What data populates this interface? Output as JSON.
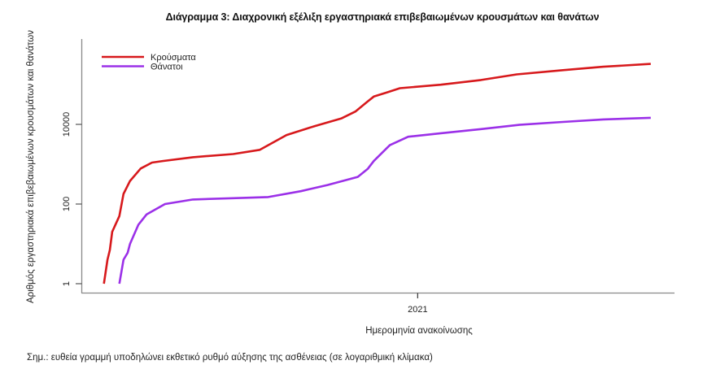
{
  "title": "Διάγραμμα 3: Διαχρονική εξέλιξη εργαστηριακά επιβεβαιωμένων κρουσμάτων και θανάτων",
  "note": "Σημ.: ευθεία γραμμή υποδηλώνει εκθετικό ρυθμό αύξησης της ασθένειας (σε λογαριθμική κλίμακα)",
  "colors": {
    "cases": "#d7191c",
    "deaths": "#9b30e8",
    "axis": "#888888"
  },
  "chart_data": {
    "type": "line",
    "title": "Διάγραμμα 3: Διαχρονική εξέλιξη εργαστηριακά επιβεβαιωμένων κρουσμάτων και θανάτων",
    "xlabel": "Ημερομηνία ανακοίνωσης",
    "ylabel": "Αριθμός εργαστηριακά επιβεβαιωμένων κρουσμάτων και θανάτων",
    "yscale": "log",
    "yticks": [
      1,
      100,
      10000
    ],
    "ytick_labels": [
      "1",
      "100",
      "10000"
    ],
    "xticks": [
      "2021"
    ],
    "grid": false,
    "legend_position": "top-left",
    "x_index_note": "x = horizontal position fraction (0 = left axis, 1 = right end of x-axis)",
    "series": [
      {
        "name": "Κρούσματα",
        "color": "#d7191c",
        "x": [
          0.038,
          0.044,
          0.048,
          0.052,
          0.064,
          0.071,
          0.082,
          0.1,
          0.119,
          0.137,
          0.188,
          0.256,
          0.301,
          0.346,
          0.393,
          0.438,
          0.462,
          0.483,
          0.493,
          0.516,
          0.537,
          0.606,
          0.674,
          0.734,
          0.812,
          0.88,
          0.96
        ],
        "values": [
          1,
          4,
          7,
          20,
          50,
          180,
          380,
          780,
          1100,
          1200,
          1500,
          1800,
          2300,
          5400,
          9000,
          14000,
          21000,
          38000,
          50000,
          64000,
          81000,
          99000,
          130000,
          180000,
          230000,
          280000,
          330000
        ]
      },
      {
        "name": "Θάνατοι",
        "color": "#9b30e8",
        "x": [
          0.064,
          0.071,
          0.078,
          0.082,
          0.096,
          0.11,
          0.141,
          0.188,
          0.256,
          0.315,
          0.37,
          0.415,
          0.466,
          0.483,
          0.493,
          0.52,
          0.551,
          0.606,
          0.674,
          0.738,
          0.812,
          0.88,
          0.96
        ],
        "values": [
          1,
          4,
          6,
          10,
          30,
          55,
          100,
          130,
          140,
          150,
          210,
          300,
          480,
          770,
          1200,
          3000,
          4900,
          6000,
          7600,
          9700,
          11500,
          13300,
          14600
        ]
      }
    ]
  },
  "axes": {
    "y_ticks": [
      {
        "label": "1",
        "value": 1
      },
      {
        "label": "100",
        "value": 100
      },
      {
        "label": "10000",
        "value": 10000
      }
    ],
    "x_ticks": [
      {
        "label": "2021",
        "pos": 0.567
      }
    ]
  },
  "legend": {
    "items": [
      {
        "label": "Κρούσματα",
        "color": "#d7191c"
      },
      {
        "label": "Θάνατοι",
        "color": "#9b30e8"
      }
    ]
  }
}
